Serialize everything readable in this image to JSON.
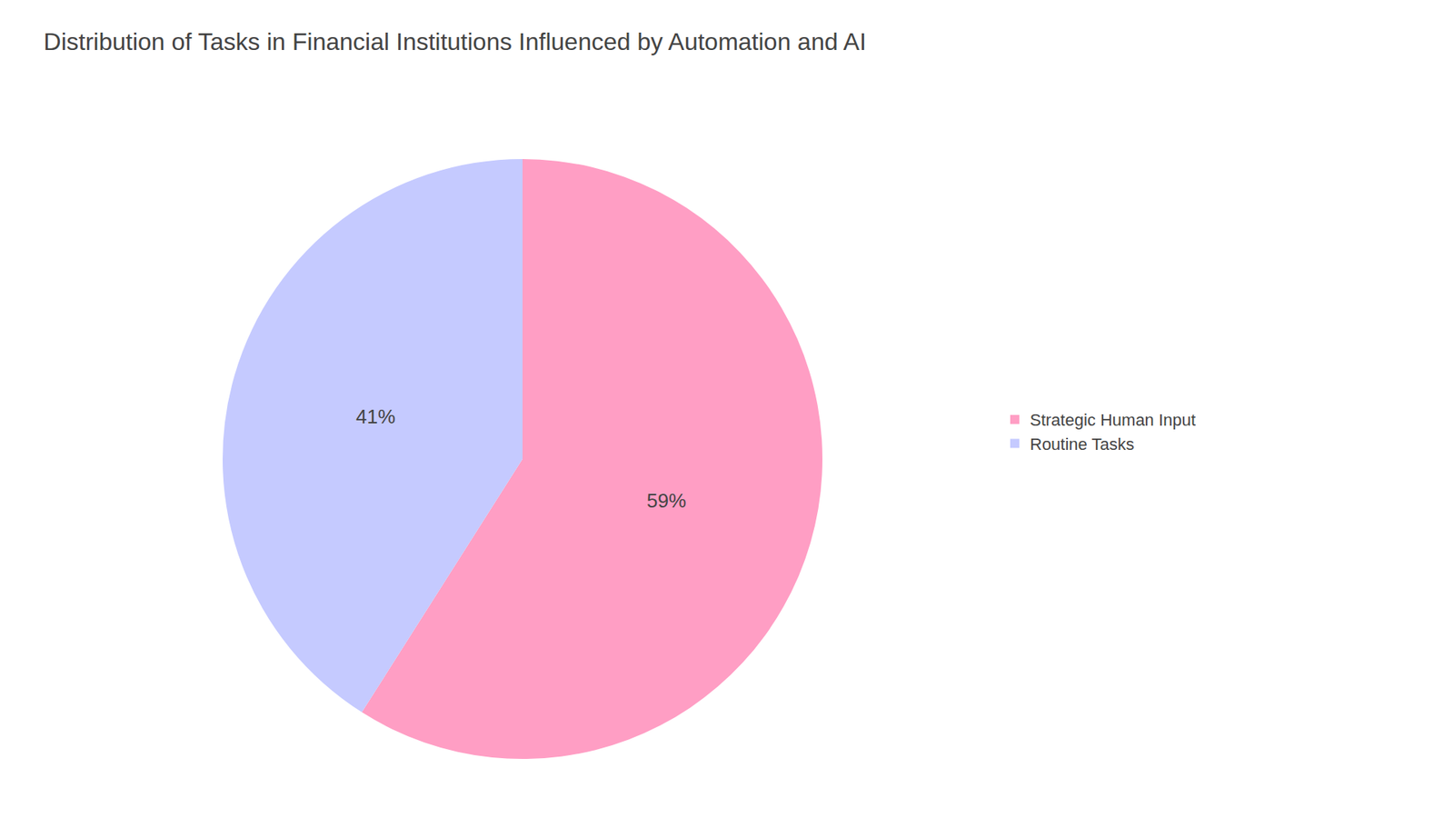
{
  "chart_data": {
    "type": "pie",
    "title": "Distribution of Tasks in Financial Institutions Influenced by Automation and AI",
    "categories": [
      "Strategic Human Input",
      "Routine Tasks"
    ],
    "values": [
      59,
      41
    ],
    "value_labels": [
      "59%",
      "41%"
    ],
    "colors": [
      "#FF9EC4",
      "#C5CAFF"
    ],
    "data_labels": true,
    "legend": "right"
  }
}
